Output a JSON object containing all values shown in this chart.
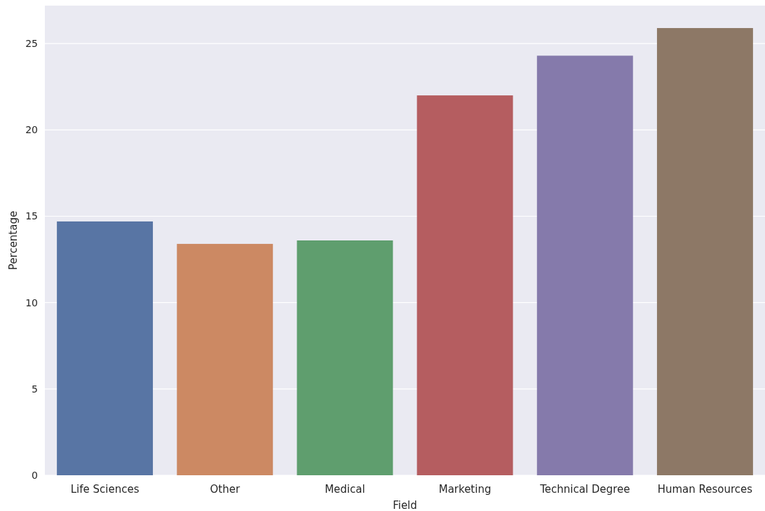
{
  "chart_data": {
    "type": "bar",
    "xlabel": "Field",
    "ylabel": "Percentage",
    "categories": [
      "Life Sciences",
      "Other",
      "Medical",
      "Marketing",
      "Technical Degree",
      "Human Resources"
    ],
    "values": [
      14.7,
      13.4,
      13.6,
      22.0,
      24.3,
      25.9
    ],
    "colors": [
      "#5875a4",
      "#cc8963",
      "#5f9e6e",
      "#b55d60",
      "#857aab",
      "#8d7866"
    ],
    "ylim": [
      0,
      27.2
    ],
    "yticks": [
      0,
      5,
      10,
      15,
      20,
      25
    ],
    "grid": true
  }
}
